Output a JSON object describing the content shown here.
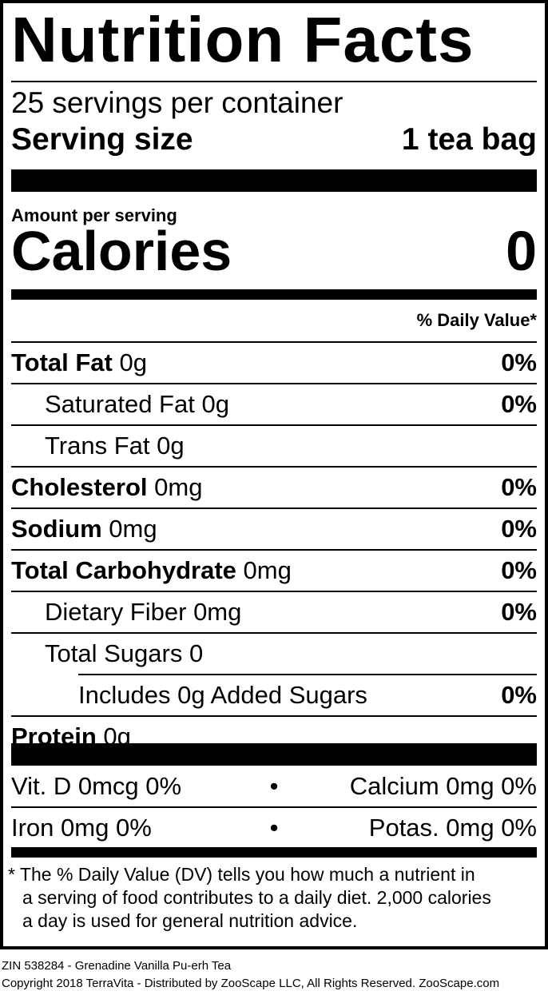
{
  "title": "Nutrition Facts",
  "servings_per_container": "25 servings per container",
  "serving_size": {
    "label": "Serving size",
    "value": "1 tea bag"
  },
  "amount_per_serving": "Amount per serving",
  "calories": {
    "label": "Calories",
    "value": "0"
  },
  "daily_value_header": "% Daily Value*",
  "nutrients": [
    {
      "name": "Total Fat",
      "amount": "0g",
      "dv": "0%",
      "bold": true,
      "indent": 0
    },
    {
      "name": "Saturated Fat",
      "amount": "0g",
      "dv": "0%",
      "bold": false,
      "indent": 1
    },
    {
      "name": "Trans Fat",
      "amount": "0g",
      "dv": "",
      "bold": false,
      "indent": 1
    },
    {
      "name": "Cholesterol",
      "amount": "0mg",
      "dv": "0%",
      "bold": true,
      "indent": 0
    },
    {
      "name": "Sodium",
      "amount": "0mg",
      "dv": "0%",
      "bold": true,
      "indent": 0
    },
    {
      "name": "Total Carbohydrate",
      "amount": "0mg",
      "dv": "0%",
      "bold": true,
      "indent": 0
    },
    {
      "name": "Dietary Fiber",
      "amount": "0mg",
      "dv": "0%",
      "bold": false,
      "indent": 1
    },
    {
      "name": "Total Sugars",
      "amount": "0",
      "dv": "",
      "bold": false,
      "indent": 1
    },
    {
      "name": "Includes 0g Added Sugars",
      "amount": "",
      "dv": "0%",
      "bold": false,
      "indent": 2
    },
    {
      "name": "Protein",
      "amount": "0g",
      "dv": "",
      "bold": true,
      "indent": 0
    }
  ],
  "vitamins": [
    {
      "left": "Vit. D 0mcg 0%",
      "sep": "•",
      "right": "Calcium 0mg 0%"
    },
    {
      "left": "Iron 0mg 0%",
      "sep": "•",
      "right": "Potas. 0mg 0%"
    }
  ],
  "footnote": {
    "line1": "* The % Daily Value (DV) tells you how much a nutrient in",
    "line2": "a serving of food contributes to a daily diet. 2,000 calories",
    "line3": "a day is used for general nutrition advice."
  },
  "product_line": "ZIN 538284 - Grenadine Vanilla Pu-erh Tea",
  "copyright": "Copyright 2018 TerraVita - Distributed by ZooScape LLC, All Rights Reserved. ZooScape.com"
}
